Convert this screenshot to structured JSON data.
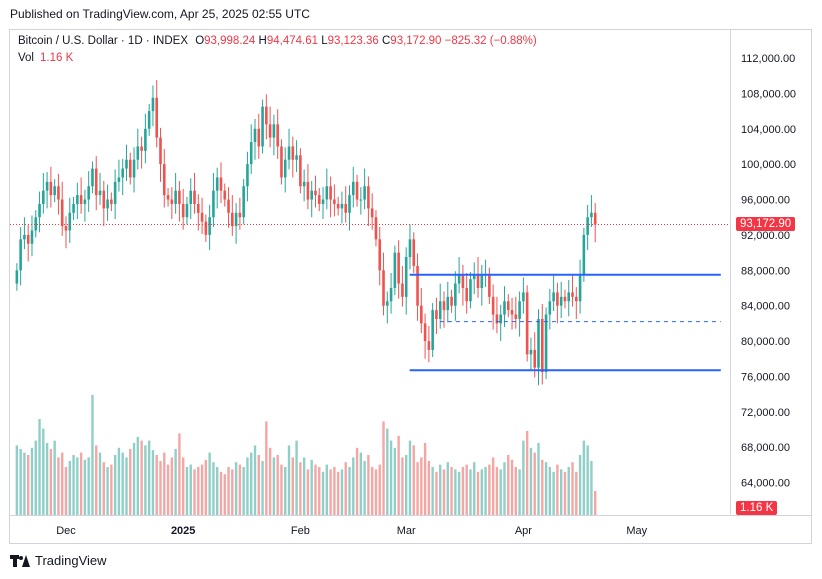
{
  "header": {
    "published": "Published on TradingView.com, Apr 25, 2025 02:55 UTC"
  },
  "legend": {
    "symbol": "Bitcoin / U.S. Dollar · 1D · INDEX",
    "o_label": "O",
    "o_value": "93,998.24",
    "h_label": "H",
    "h_value": "94,474.61",
    "l_label": "L",
    "l_value": "93,123.36",
    "c_label": "C",
    "c_value": "93,172.90",
    "change": "−825.32 (−0.88%)",
    "vol_label": "Vol",
    "vol_value": "1.16 K"
  },
  "price_label": "93,172.90",
  "volume_label": "1.16 K",
  "brand": {
    "name": "TradingView",
    "icon": "tradingview-logo-icon"
  },
  "colors": {
    "up": "#26a69a",
    "down": "#ef5350",
    "up_vol": "#8fcfc8",
    "down_vol": "#f4a6a4",
    "line": "#2962ff",
    "price_line": "#f23645"
  },
  "chart_data": {
    "type": "candlestick",
    "title": "Bitcoin / U.S. Dollar · 1D · INDEX",
    "yticks": [
      "112,000.00",
      "108,000.00",
      "104,000.00",
      "100,000.00",
      "96,000.00",
      "92,000.00",
      "88,000.00",
      "84,000.00",
      "80,000.00",
      "76,000.00",
      "72,000.00",
      "68,000.00",
      "64,000.00"
    ],
    "ytick_values": [
      112000,
      108000,
      104000,
      100000,
      96000,
      92000,
      88000,
      84000,
      80000,
      76000,
      72000,
      68000,
      64000
    ],
    "xticks": [
      {
        "label": "Dec",
        "day": 0,
        "bold": false
      },
      {
        "label": "2025",
        "day": 31,
        "bold": true
      },
      {
        "label": "Feb",
        "day": 62,
        "bold": false
      },
      {
        "label": "Mar",
        "day": 90,
        "bold": false
      },
      {
        "label": "Apr",
        "day": 121,
        "bold": false
      },
      {
        "label": "May",
        "day": 151,
        "bold": false
      }
    ],
    "ylim": [
      62000,
      114000
    ],
    "first_day_offset": -13,
    "closes": [
      88000,
      91500,
      92000,
      91000,
      92500,
      94000,
      95500,
      97000,
      98000,
      96500,
      97500,
      96000,
      93000,
      92500,
      94500,
      95500,
      96500,
      95500,
      96000,
      97500,
      99500,
      96500,
      97000,
      95000,
      96000,
      95500,
      98000,
      98500,
      99500,
      100500,
      98500,
      100500,
      102000,
      101500,
      104000,
      106000,
      107500,
      103000,
      100000,
      96500,
      96000,
      95500,
      97000,
      95500,
      94000,
      95500,
      97000,
      95500,
      94500,
      93500,
      92000,
      94000,
      97000,
      98500,
      97000,
      96000,
      94500,
      93000,
      94500,
      94000,
      97500,
      100000,
      102500,
      104000,
      102000,
      106500,
      104500,
      103000,
      104500,
      102000,
      98500,
      100500,
      102000,
      100500,
      101000,
      97500,
      98000,
      96000,
      97000,
      96500,
      95500,
      96000,
      97500,
      96000,
      95500,
      95000,
      95500,
      94500,
      96500,
      98000,
      96000,
      96000,
      97500,
      95000,
      94000,
      91500,
      88000,
      84000,
      84500,
      86000,
      90000,
      86500,
      85000,
      89500,
      91500,
      88500,
      84000,
      82000,
      80000,
      79000,
      83500,
      82500,
      84500,
      83500,
      85000,
      84000,
      86500,
      87500,
      86000,
      84500,
      87000,
      87500,
      86000,
      87500,
      87500,
      85000,
      83000,
      82000,
      83000,
      84500,
      83500,
      83000,
      82500,
      84500,
      85500,
      78500,
      79000,
      77000,
      82500,
      76500,
      83000,
      84500,
      85500,
      84000,
      85000,
      84500,
      85500,
      85000,
      84500,
      87500,
      92000,
      94000,
      94500,
      93172.9
    ],
    "volumes": [
      58,
      55,
      52,
      50,
      56,
      62,
      80,
      72,
      60,
      55,
      62,
      48,
      52,
      40,
      45,
      50,
      48,
      52,
      46,
      48,
      100,
      58,
      52,
      44,
      40,
      42,
      50,
      56,
      52,
      48,
      55,
      60,
      65,
      62,
      58,
      62,
      54,
      50,
      45,
      52,
      42,
      48,
      55,
      68,
      48,
      40,
      42,
      38,
      40,
      42,
      46,
      52,
      44,
      40,
      36,
      34,
      40,
      38,
      44,
      42,
      40,
      48,
      52,
      58,
      50,
      45,
      78,
      56,
      48,
      50,
      42,
      40,
      58,
      48,
      62,
      44,
      48,
      38,
      46,
      42,
      40,
      36,
      42,
      38,
      40,
      36,
      38,
      44,
      40,
      48,
      56,
      52,
      45,
      50,
      40,
      38,
      42,
      78,
      72,
      62,
      56,
      66,
      48,
      50,
      62,
      58,
      44,
      48,
      60,
      45,
      40,
      36,
      42,
      38,
      44,
      40,
      38,
      36,
      40,
      42,
      38,
      44,
      36,
      38,
      40,
      42,
      48,
      40,
      38,
      44,
      50,
      46,
      40,
      38,
      62,
      70,
      56,
      52,
      60,
      46,
      44,
      40,
      36,
      42,
      38,
      36,
      40,
      44,
      36,
      50,
      62,
      58,
      45,
      20
    ]
  },
  "annotations": {
    "range_top": 87500,
    "range_bottom": 76700,
    "range_mid": 82200,
    "range_start_day": 106,
    "range_end_day": 160,
    "range_mid_start_day": 114,
    "price_line_value": 93172.9
  }
}
